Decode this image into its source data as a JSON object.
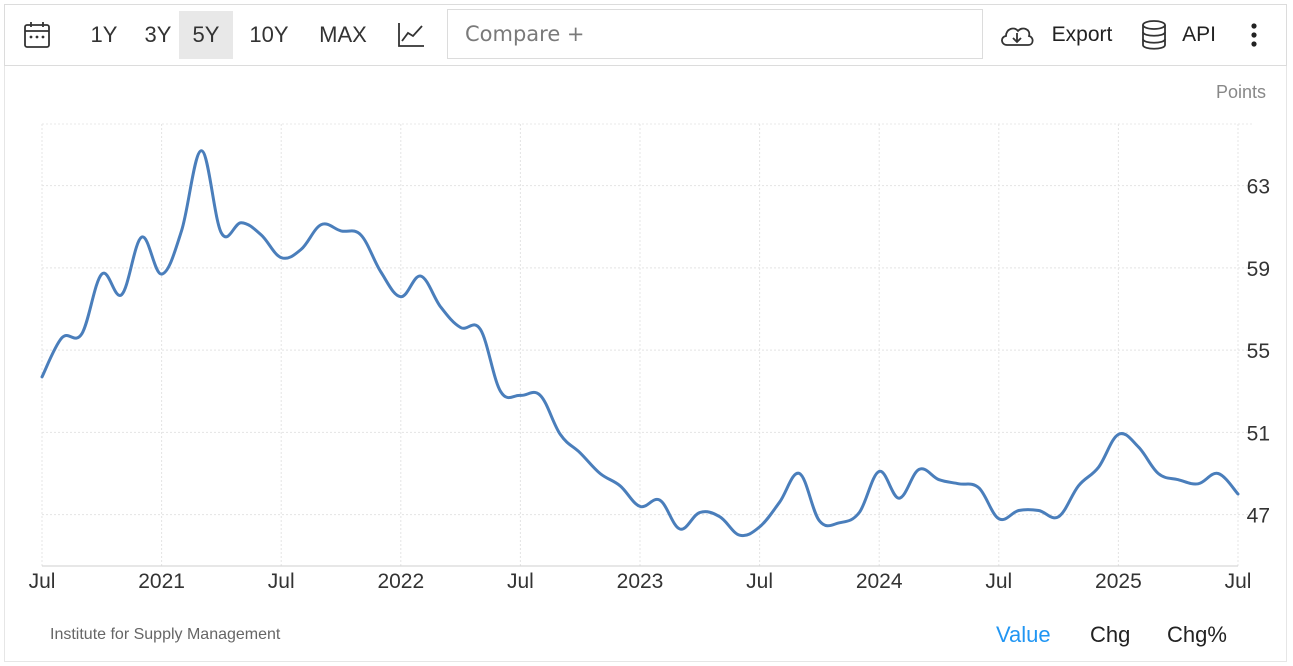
{
  "toolbar": {
    "calendar_icon": "calendar-icon",
    "ranges": [
      "1Y",
      "3Y",
      "5Y",
      "10Y",
      "MAX"
    ],
    "active_range": "5Y",
    "chart_type_icon": "line-chart-icon",
    "compare_placeholder": "Compare +",
    "export_label": "Export",
    "api_label": "API",
    "more_icon": "vertical-dots-icon"
  },
  "footer": {
    "source": "Institute for Supply Management",
    "tabs": [
      "Value",
      "Chg",
      "Chg%"
    ],
    "active_tab": "Value"
  },
  "colors": {
    "line": "#4a7ebb",
    "accent": "#2196f3"
  },
  "chart_data": {
    "type": "line",
    "unit_label": "Points",
    "y_ticks": [
      47,
      51,
      55,
      59,
      63
    ],
    "ylim": [
      44.5,
      66
    ],
    "x_ticks": [
      "Jul",
      "2021",
      "Jul",
      "2022",
      "Jul",
      "2023",
      "Jul",
      "2024",
      "Jul",
      "2025",
      "Jul"
    ],
    "x_tick_months": [
      0,
      6,
      12,
      18,
      24,
      30,
      36,
      42,
      48,
      54,
      60
    ],
    "grid": true,
    "series": [
      {
        "x_start": "2020-07",
        "values": [
          53.7,
          55.6,
          55.8,
          58.7,
          57.7,
          60.5,
          58.7,
          60.8,
          64.7,
          60.7,
          61.2,
          60.6,
          59.5,
          59.9,
          61.1,
          60.8,
          60.6,
          58.8,
          57.6,
          58.6,
          57.1,
          56.1,
          56.0,
          53.0,
          52.8,
          52.8,
          50.9,
          50.0,
          49.0,
          48.4,
          47.4,
          47.7,
          46.3,
          47.1,
          46.9,
          46.0,
          46.4,
          47.6,
          49.0,
          46.7,
          46.6,
          47.1,
          49.1,
          47.8,
          49.2,
          48.7,
          48.5,
          48.3,
          46.8,
          47.2,
          47.2,
          46.9,
          48.4,
          49.3,
          50.9,
          50.3,
          49.0,
          48.7,
          48.5,
          49.0,
          48.0
        ]
      }
    ]
  }
}
